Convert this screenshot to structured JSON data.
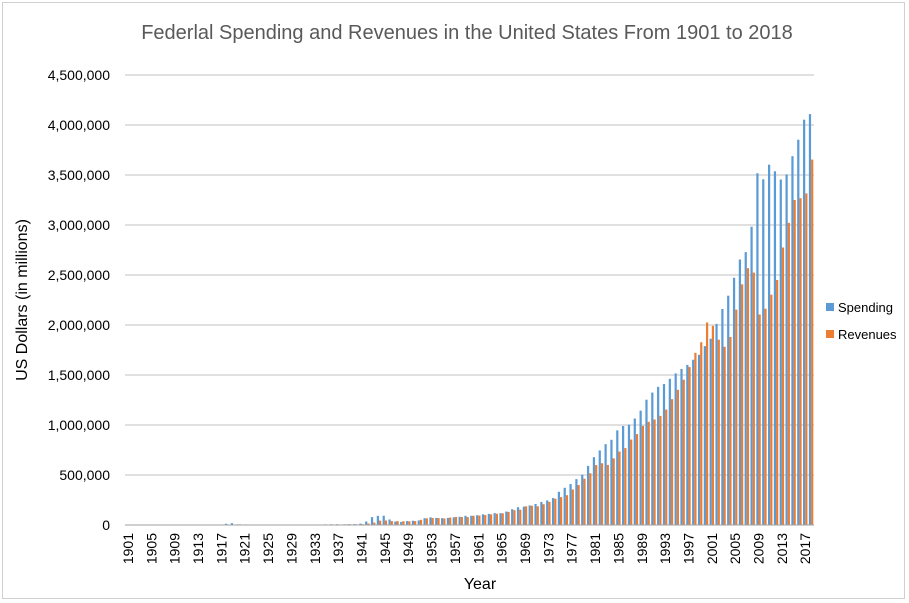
{
  "chart_data": {
    "type": "bar",
    "title": "Federlal Spending and Revenues in the United States From 1901 to 2018",
    "xlabel": "Year",
    "ylabel": "US Dollars (in millions)",
    "ylim": [
      0,
      4500000
    ],
    "yticks": [
      0,
      500000,
      1000000,
      1500000,
      2000000,
      2500000,
      3000000,
      3500000,
      4000000,
      4500000
    ],
    "ytick_labels": [
      "0",
      "500,000",
      "1,000,000",
      "1,500,000",
      "2,000,000",
      "2,500,000",
      "3,000,000",
      "3,500,000",
      "4,000,000",
      "4,500,000"
    ],
    "xtick_labels": [
      "1901",
      "1905",
      "1909",
      "1913",
      "1917",
      "1921",
      "1925",
      "1929",
      "1933",
      "1937",
      "1941",
      "1945",
      "1949",
      "1953",
      "1957",
      "1961",
      "1965",
      "1969",
      "1973",
      "1977",
      "1981",
      "1985",
      "1989",
      "1993",
      "1997",
      "2001",
      "2005",
      "2009",
      "2013",
      "2017"
    ],
    "x_start": 1901,
    "x_end": 2018,
    "grid": true,
    "legend_position": "right",
    "colors": {
      "Spending": "#5B9BD5",
      "Revenues": "#ED7D31"
    },
    "series": [
      {
        "name": "Spending",
        "values": [
          525,
          485,
          517,
          584,
          567,
          570,
          579,
          659,
          694,
          694,
          691,
          690,
          715,
          726,
          746,
          713,
          1954,
          12677,
          18493,
          6358,
          5062,
          3289,
          3140,
          2908,
          2924,
          2930,
          2857,
          2961,
          3127,
          3320,
          3577,
          4659,
          4598,
          4598,
          6541,
          7580,
          8228,
          5840,
          8841,
          9468,
          13653,
          35137,
          78555,
          91304,
          92712,
          55232,
          34496,
          29764,
          38835,
          42562,
          45514,
          67686,
          76101,
          70855,
          68444,
          70640,
          76578,
          82405,
          92098,
          92191,
          97723,
          106821,
          111316,
          118528,
          118228,
          134532,
          157464,
          178134,
          183640,
          195649,
          210172,
          230681,
          245707,
          269359,
          332332,
          371792,
          409218,
          458746,
          504028,
          590941,
          678241,
          745743,
          808364,
          851805,
          946344,
          990382,
          1004017,
          1064416,
          1143744,
          1252993,
          1324226,
          1381529,
          1409386,
          1461753,
          1515742,
          1560484,
          1601116,
          1652458,
          1701842,
          1788950,
          1862846,
          2010894,
          2159899,
          2292841,
          2471957,
          2655050,
          2728686,
          2982544,
          3517677,
          3457079,
          3603059,
          3536951,
          3454647,
          3506114,
          3688292,
          3852616,
          4052840,
          4109042
        ]
      },
      {
        "name": "Revenues",
        "values": [
          588,
          562,
          562,
          541,
          544,
          595,
          666,
          602,
          604,
          676,
          702,
          693,
          714,
          725,
          683,
          761,
          1101,
          3645,
          5130,
          6649,
          5571,
          4026,
          3853,
          3871,
          3641,
          3795,
          4013,
          3900,
          3862,
          4058,
          3116,
          1924,
          1997,
          2955,
          3609,
          3923,
          5387,
          6751,
          6295,
          6548,
          8712,
          14634,
          24001,
          43747,
          45159,
          39296,
          38514,
          38148,
          37052,
          39443,
          51616,
          66167,
          69608,
          69701,
          65451,
          74587,
          79990,
          79636,
          79249,
          92492,
          94388,
          99676,
          106560,
          112613,
          116817,
          130835,
          148822,
          152973,
          186882,
          192807,
          187139,
          207309,
          230799,
          263224,
          279090,
          298060,
          355559,
          399561,
          463302,
          517112,
          599272,
          617766,
          600562,
          666438,
          734037,
          769155,
          854287,
          909238,
          991105,
          1031958,
          1054988,
          1091208,
          1154335,
          1258566,
          1351790,
          1453053,
          1579232,
          1721728,
          1827452,
          2025191,
          1991082,
          1853136,
          1782314,
          1880114,
          2153611,
          2406869,
          2567985,
          2523991,
          2104989,
          2162706,
          2303466,
          2449988,
          2775103,
          3021487,
          3249887,
          3267961,
          3316182,
          3654000
        ]
      }
    ]
  }
}
